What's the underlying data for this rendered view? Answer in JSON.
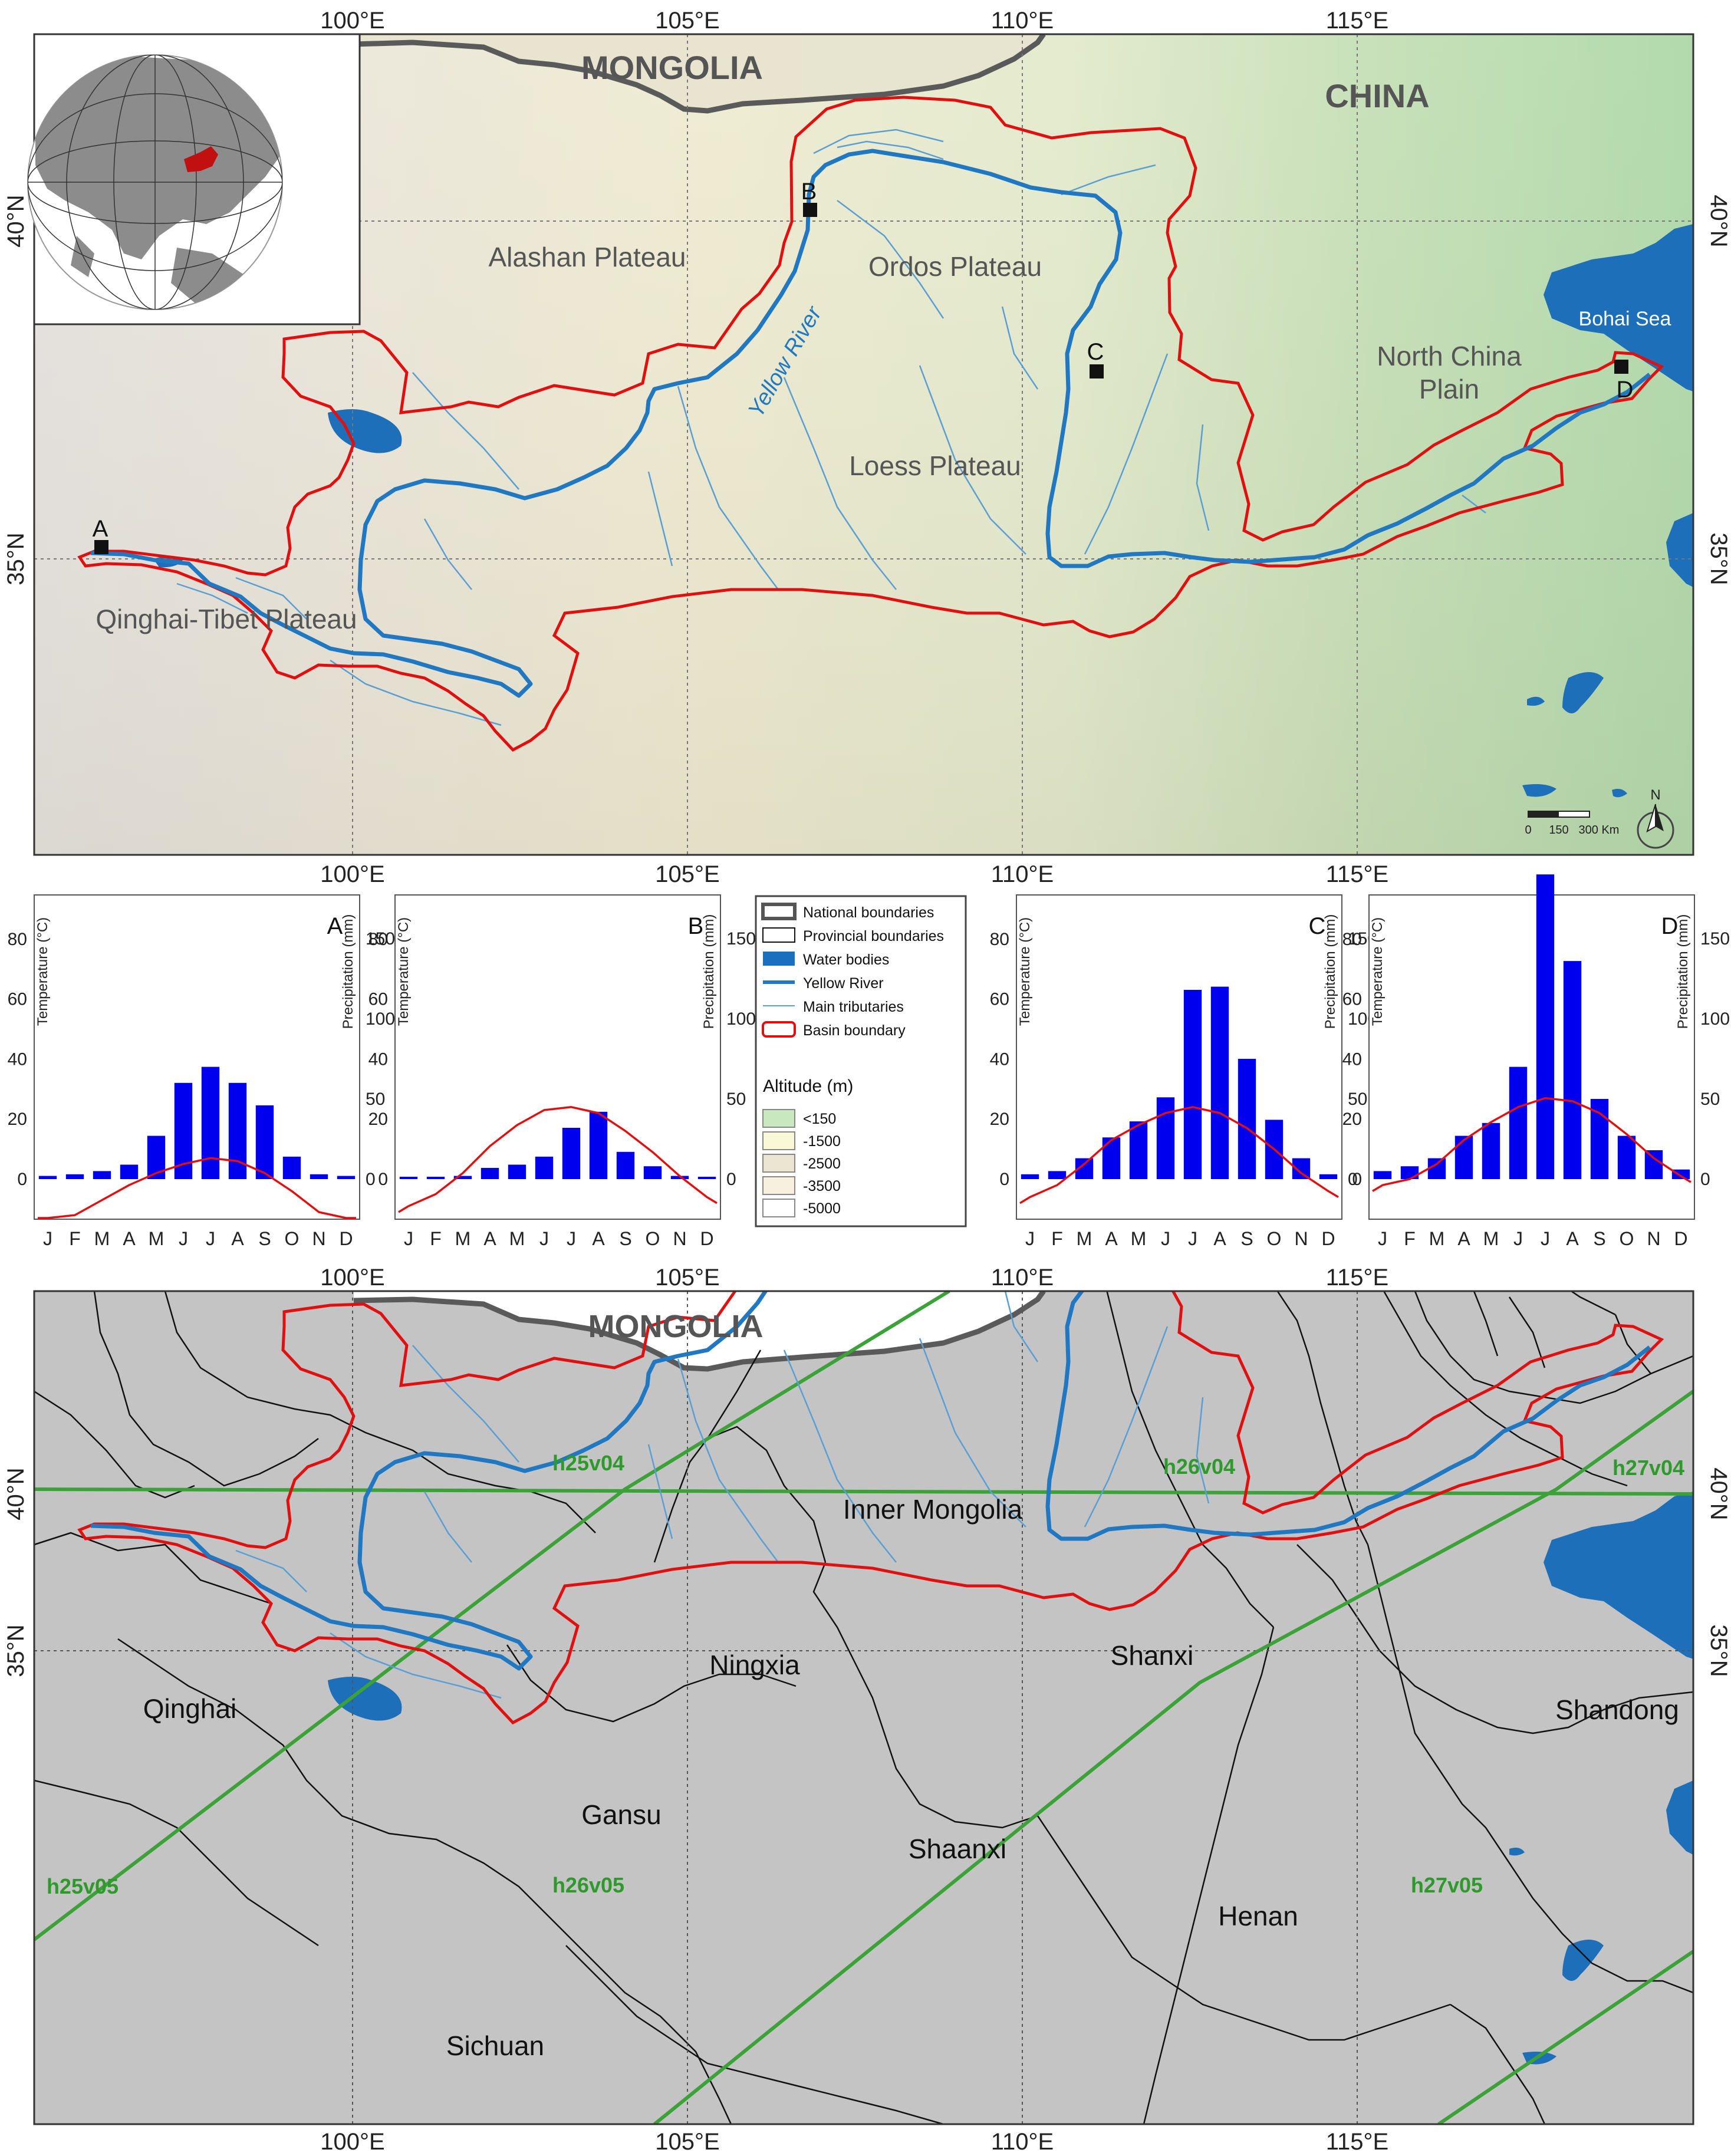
{
  "lon_ticks": [
    "100°E",
    "105°E",
    "110°E",
    "115°E"
  ],
  "lat_ticks": [
    "40°N",
    "35°N"
  ],
  "top_map": {
    "country_labels": [
      "MONGOLIA",
      "CHINA"
    ],
    "region_labels": [
      "Alashan Plateau",
      "Ordos Plateau",
      "Loess Plateau",
      "Qinghai-Tibet Plateau",
      "North China",
      "Plain",
      "Bohai Sea"
    ],
    "river_label": "Yellow River",
    "stations": [
      "A",
      "B",
      "C",
      "D"
    ],
    "scale": {
      "ticks": [
        "0",
        "150",
        "300 Km"
      ]
    },
    "north": "N"
  },
  "legend": {
    "items": [
      "National boundaries",
      "Provincial boundaries",
      "Water bodies",
      "Yellow River",
      "Main tributaries",
      "Basin boundary"
    ],
    "altitude_title": "Altitude (m)",
    "altitude_classes": [
      "<150",
      "-1500",
      "-2500",
      "-3500",
      "-5000"
    ],
    "colors": {
      "basin": "#e01010",
      "river": "#1f78c1",
      "water": "#1a6fbf",
      "alt": [
        "#c8e8c0",
        "#fbf8d8",
        "#ebe6d2",
        "#f7f0de",
        "#ffffff"
      ]
    }
  },
  "climate_axes": {
    "temperature_label": "Temperature (°C)",
    "precipitation_label": "Precipitation (mm)",
    "temperature_ticks": [
      "80",
      "60",
      "40",
      "20",
      "0"
    ],
    "precipitation_ticks": [
      "150",
      "100",
      "50",
      "0"
    ],
    "months": [
      "J",
      "F",
      "M",
      "A",
      "M",
      "J",
      "J",
      "A",
      "S",
      "O",
      "N",
      "D"
    ]
  },
  "chart_data": [
    {
      "type": "bar",
      "title": "A",
      "categories": [
        "J",
        "F",
        "M",
        "A",
        "M",
        "J",
        "J",
        "A",
        "S",
        "O",
        "N",
        "D"
      ],
      "series": [
        {
          "values": [
            2,
            3,
            5,
            9,
            27,
            60,
            70,
            60,
            46,
            14,
            3,
            2
          ]
        },
        {
          "values": [
            -15,
            -12,
            -7,
            -2,
            2,
            5,
            7,
            6,
            2,
            -4,
            -11,
            -15
          ]
        }
      ],
      "temperature_range": [
        -15,
        80
      ],
      "precipitation_range": [
        0,
        180
      ]
    },
    {
      "type": "bar",
      "title": "B",
      "categories": [
        "J",
        "F",
        "M",
        "A",
        "M",
        "J",
        "J",
        "A",
        "S",
        "O",
        "N",
        "D"
      ],
      "series": [
        {
          "values": [
            0,
            1,
            2,
            7,
            9,
            14,
            32,
            42,
            17,
            8,
            2,
            0
          ]
        },
        {
          "values": [
            -9,
            -5,
            2,
            11,
            18,
            23,
            24,
            22,
            16,
            9,
            1,
            -6
          ]
        }
      ],
      "temperature_range": [
        -15,
        80
      ],
      "precipitation_range": [
        0,
        180
      ]
    },
    {
      "type": "bar",
      "title": "C",
      "categories": [
        "J",
        "F",
        "M",
        "A",
        "M",
        "J",
        "J",
        "A",
        "S",
        "O",
        "N",
        "D"
      ],
      "series": [
        {
          "values": [
            3,
            5,
            13,
            26,
            36,
            51,
            118,
            120,
            75,
            37,
            13,
            3
          ]
        },
        {
          "values": [
            -6,
            -2,
            5,
            13,
            18,
            22,
            24,
            22,
            17,
            10,
            2,
            -4
          ]
        }
      ],
      "temperature_range": [
        -15,
        80
      ],
      "precipitation_range": [
        0,
        180
      ]
    },
    {
      "type": "bar",
      "title": "D",
      "categories": [
        "J",
        "F",
        "M",
        "A",
        "M",
        "J",
        "J",
        "A",
        "S",
        "O",
        "N",
        "D"
      ],
      "series": [
        {
          "values": [
            5,
            8,
            13,
            27,
            35,
            70,
            190,
            136,
            50,
            27,
            18,
            6
          ]
        },
        {
          "values": [
            -2,
            0,
            5,
            13,
            19,
            24,
            27,
            26,
            22,
            15,
            7,
            1
          ]
        }
      ],
      "temperature_range": [
        -15,
        80
      ],
      "precipitation_range": [
        0,
        180
      ]
    }
  ],
  "bottom_map": {
    "country_labels": [
      "MONGOLIA"
    ],
    "provinces": [
      "Inner Mongolia",
      "Qinghai",
      "Ningxia",
      "Shanxi",
      "Shandong",
      "Gansu",
      "Shaanxi",
      "Henan",
      "Sichuan"
    ],
    "tiles": [
      "h25v04",
      "h26v04",
      "h27v04",
      "h25v05",
      "h26v05",
      "h27v05"
    ]
  }
}
